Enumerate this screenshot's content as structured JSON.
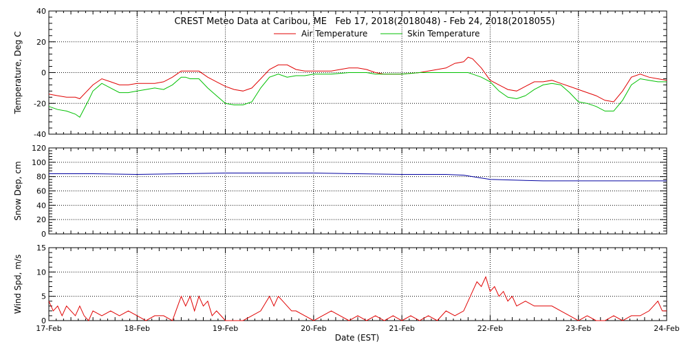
{
  "title": "CREST Meteo Data at Caribou, ME   Feb 17, 2018(2018048) - Feb 24, 2018(2018055)",
  "xlabel": "Date (EST)",
  "x_ticks": [
    "17-Feb",
    "18-Feb",
    "19-Feb",
    "20-Feb",
    "21-Feb",
    "22-Feb",
    "23-Feb",
    "24-Feb"
  ],
  "colors": {
    "air": "#e00000",
    "skin": "#00c000",
    "snow": "#0000a0",
    "wind": "#e00000"
  },
  "chart_data": [
    {
      "type": "line",
      "ylabel": "Temperature, Deg C",
      "ylim": [
        -40,
        40
      ],
      "yticks": [
        -40,
        -20,
        0,
        20,
        40
      ],
      "xlim": [
        0,
        7
      ],
      "legend": "top-center",
      "grid": true,
      "series": [
        {
          "name": "Air Temperature",
          "color": "#e00000",
          "x": [
            0,
            0.1,
            0.2,
            0.3,
            0.35,
            0.45,
            0.5,
            0.6,
            0.7,
            0.8,
            0.9,
            1.0,
            1.1,
            1.2,
            1.3,
            1.4,
            1.5,
            1.55,
            1.6,
            1.7,
            1.8,
            1.9,
            2.0,
            2.1,
            2.2,
            2.3,
            2.4,
            2.5,
            2.6,
            2.7,
            2.8,
            2.9,
            3.0,
            3.2,
            3.4,
            3.5,
            3.6,
            3.7,
            3.8,
            3.9,
            4.0,
            4.2,
            4.3,
            4.4,
            4.5,
            4.6,
            4.7,
            4.75,
            4.8,
            4.9,
            5.0,
            5.1,
            5.2,
            5.3,
            5.4,
            5.5,
            5.6,
            5.7,
            5.8,
            5.9,
            6.0,
            6.1,
            6.2,
            6.3,
            6.4,
            6.5,
            6.6,
            6.7,
            6.8,
            6.9,
            7.0
          ],
          "y": [
            -14,
            -15,
            -16,
            -16,
            -17,
            -11,
            -8,
            -4,
            -6,
            -8,
            -8,
            -7,
            -7,
            -7,
            -6,
            -3,
            1,
            1,
            1,
            1,
            -3,
            -6,
            -9,
            -11,
            -12,
            -10,
            -4,
            2,
            5,
            5,
            2,
            1,
            1,
            1,
            3,
            3,
            2,
            0,
            -1,
            -1,
            -1,
            0,
            1,
            2,
            3,
            6,
            7,
            10,
            9,
            3,
            -5,
            -8,
            -11,
            -12,
            -9,
            -6,
            -6,
            -5,
            -7,
            -9,
            -11,
            -13,
            -15,
            -18,
            -19,
            -12,
            -3,
            -1,
            -3,
            -4,
            -5
          ]
        },
        {
          "name": "Skin Temperature",
          "color": "#00c000",
          "x": [
            0,
            0.1,
            0.2,
            0.3,
            0.35,
            0.45,
            0.5,
            0.6,
            0.7,
            0.8,
            0.9,
            1.0,
            1.1,
            1.2,
            1.3,
            1.4,
            1.5,
            1.55,
            1.6,
            1.7,
            1.8,
            1.9,
            2.0,
            2.1,
            2.2,
            2.3,
            2.4,
            2.5,
            2.6,
            2.7,
            2.8,
            2.9,
            3.0,
            3.2,
            3.4,
            3.5,
            3.6,
            3.7,
            3.8,
            3.9,
            4.0,
            4.2,
            4.3,
            4.4,
            4.5,
            4.6,
            4.7,
            4.75,
            4.8,
            4.9,
            5.0,
            5.1,
            5.2,
            5.3,
            5.4,
            5.5,
            5.6,
            5.7,
            5.8,
            5.9,
            6.0,
            6.1,
            6.2,
            6.3,
            6.4,
            6.5,
            6.6,
            6.7,
            6.8,
            6.9,
            7.0
          ],
          "y": [
            -22,
            -24,
            -25,
            -27,
            -29,
            -18,
            -12,
            -7,
            -10,
            -13,
            -13,
            -12,
            -11,
            -10,
            -11,
            -8,
            -3,
            -3,
            -4,
            -4,
            -10,
            -15,
            -20,
            -21,
            -21,
            -19,
            -10,
            -3,
            -1,
            -3,
            -2,
            -2,
            -1,
            -1,
            0,
            0,
            0,
            -1,
            -1,
            -1,
            -1,
            0,
            0,
            0,
            0,
            0,
            0,
            0,
            -1,
            -3,
            -6,
            -12,
            -16,
            -17,
            -15,
            -11,
            -8,
            -7,
            -8,
            -13,
            -19,
            -20,
            -22,
            -25,
            -25,
            -18,
            -8,
            -4,
            -5,
            -6,
            -6
          ]
        }
      ]
    },
    {
      "type": "line",
      "ylabel": "Snow Dep, cm",
      "ylim": [
        0,
        120
      ],
      "yticks": [
        0,
        20,
        40,
        60,
        80,
        100,
        120
      ],
      "xlim": [
        0,
        7
      ],
      "grid": true,
      "series": [
        {
          "color": "#0000a0",
          "x": [
            0,
            0.5,
            1.0,
            1.5,
            2.0,
            2.5,
            3.0,
            3.5,
            4.0,
            4.5,
            4.7,
            4.9,
            5.0,
            5.3,
            5.6,
            6.0,
            6.5,
            7.0
          ],
          "y": [
            84,
            84,
            83,
            84,
            85,
            85,
            85,
            84,
            83,
            83,
            82,
            78,
            76,
            75,
            74,
            74,
            74,
            74
          ]
        }
      ]
    },
    {
      "type": "line",
      "ylabel": "Wind Spd, m/s",
      "ylim": [
        0,
        15
      ],
      "yticks": [
        0,
        5,
        10,
        15
      ],
      "xlim": [
        0,
        7
      ],
      "grid": true,
      "series": [
        {
          "color": "#e00000",
          "x": [
            0,
            0.05,
            0.1,
            0.15,
            0.2,
            0.25,
            0.3,
            0.35,
            0.4,
            0.45,
            0.5,
            0.6,
            0.7,
            0.8,
            0.9,
            1.0,
            1.1,
            1.2,
            1.3,
            1.4,
            1.5,
            1.55,
            1.6,
            1.65,
            1.7,
            1.75,
            1.8,
            1.85,
            1.9,
            1.95,
            2.0,
            2.1,
            2.2,
            2.3,
            2.4,
            2.5,
            2.55,
            2.6,
            2.65,
            2.7,
            2.75,
            2.8,
            2.9,
            3.0,
            3.1,
            3.2,
            3.3,
            3.4,
            3.5,
            3.6,
            3.7,
            3.8,
            3.9,
            4.0,
            4.1,
            4.2,
            4.3,
            4.4,
            4.5,
            4.6,
            4.7,
            4.75,
            4.8,
            4.85,
            4.9,
            4.95,
            5.0,
            5.05,
            5.1,
            5.15,
            5.2,
            5.25,
            5.3,
            5.4,
            5.5,
            5.6,
            5.7,
            5.8,
            5.9,
            6.0,
            6.1,
            6.2,
            6.3,
            6.4,
            6.5,
            6.6,
            6.7,
            6.8,
            6.85,
            6.9,
            6.95,
            7.0
          ],
          "y": [
            4,
            2,
            3,
            1,
            3,
            2,
            1,
            3,
            1,
            0,
            2,
            1,
            2,
            1,
            2,
            1,
            0,
            1,
            1,
            0,
            5,
            3,
            5,
            2,
            5,
            3,
            4,
            1,
            2,
            1,
            0,
            0,
            0,
            1,
            2,
            5,
            3,
            5,
            4,
            3,
            2,
            2,
            1,
            0,
            1,
            2,
            1,
            0,
            1,
            0,
            1,
            0,
            1,
            0,
            1,
            0,
            1,
            0,
            2,
            1,
            2,
            4,
            6,
            8,
            7,
            9,
            6,
            7,
            5,
            6,
            4,
            5,
            3,
            4,
            3,
            3,
            3,
            2,
            1,
            0,
            1,
            0,
            0,
            1,
            0,
            1,
            1,
            2,
            3,
            4,
            2,
            2
          ]
        }
      ]
    }
  ]
}
